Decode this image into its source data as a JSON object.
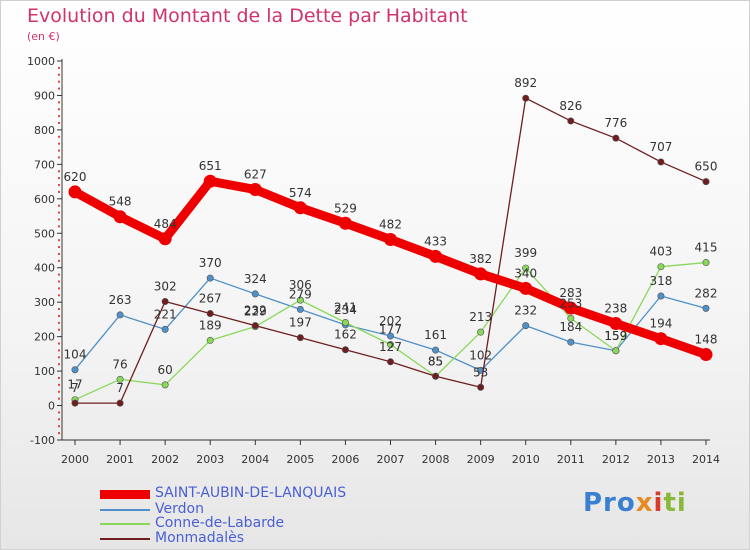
{
  "chart_data": {
    "type": "line",
    "title": "Evolution du Montant de la Dette par Habitant",
    "subtitle": "(en €)",
    "x": [
      2000,
      2001,
      2002,
      2003,
      2004,
      2005,
      2006,
      2007,
      2008,
      2009,
      2010,
      2011,
      2012,
      2013,
      2014
    ],
    "ylim": [
      -100,
      1000
    ],
    "yticks": [
      -100,
      0,
      100,
      200,
      300,
      400,
      500,
      600,
      700,
      800,
      900,
      1000
    ],
    "grid": "off",
    "legend": "bottom-left",
    "series": [
      {
        "name": "SAINT-AUBIN-DE-LANQUAIS",
        "color": "#ee0000",
        "values": [
          620,
          548,
          484,
          651,
          627,
          574,
          529,
          482,
          433,
          382,
          340,
          283,
          238,
          194,
          148
        ]
      },
      {
        "name": "Verdon",
        "color": "#4f90c8",
        "values": [
          104,
          263,
          221,
          370,
          324,
          279,
          234,
          202,
          161,
          102,
          232,
          184,
          159,
          318,
          282
        ]
      },
      {
        "name": "Conne-de-Labarde",
        "color": "#8ad85a",
        "values": [
          17,
          76,
          60,
          189,
          229,
          306,
          241,
          177,
          85,
          213,
          399,
          253,
          159,
          403,
          415
        ]
      },
      {
        "name": "Monmadalès",
        "color": "#6e1e1e",
        "values": [
          7,
          7,
          302,
          267,
          232,
          197,
          162,
          127,
          85,
          53,
          892,
          826,
          776,
          707,
          650
        ]
      }
    ]
  },
  "logo": {
    "part1": "Pro",
    "part2": "x",
    "part3": "i",
    "part4": "ti"
  }
}
